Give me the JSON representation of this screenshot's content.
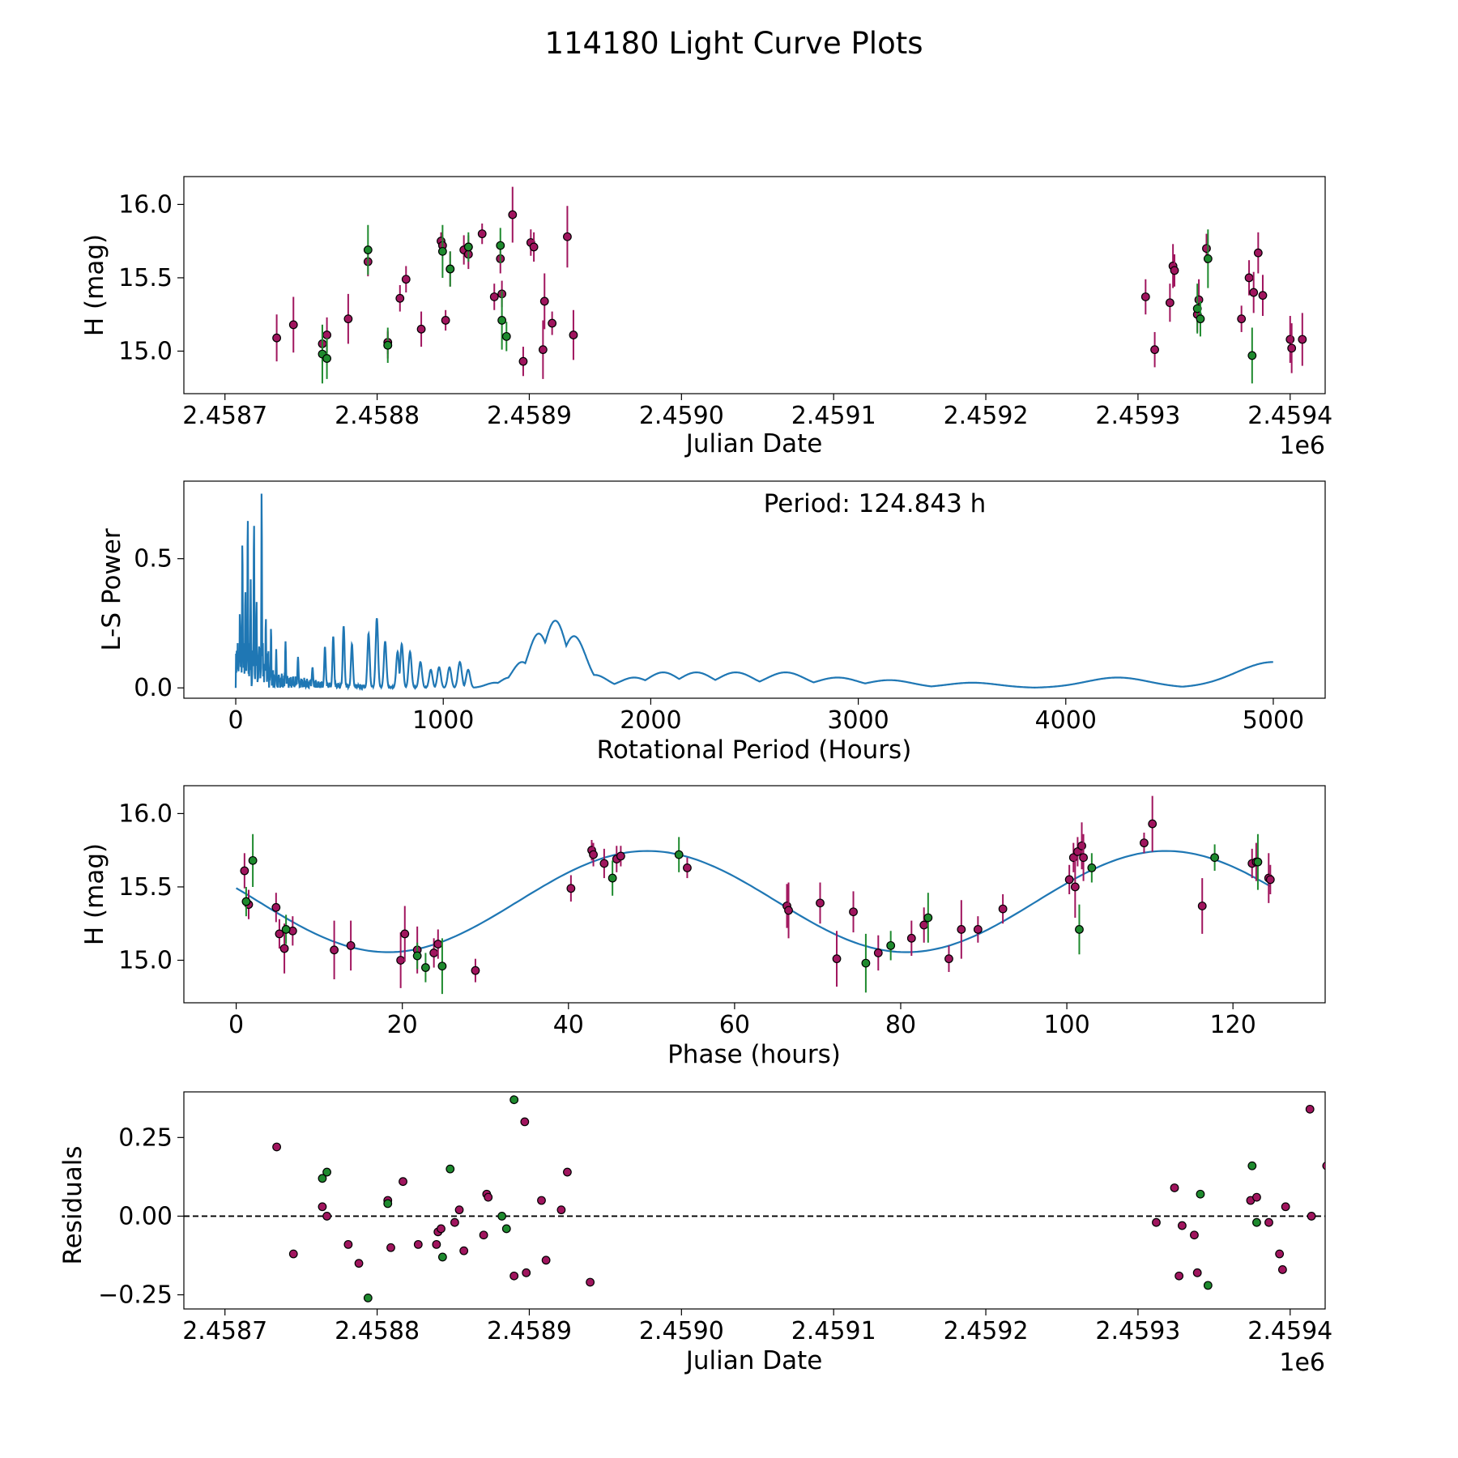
{
  "figure": {
    "title": "114180 Light Curve Plots"
  },
  "colors": {
    "magenta": "#A0155E",
    "green": "#1E8A2E",
    "line": "#1F77B4",
    "marker_edge": "#000000"
  },
  "chart_data": [
    {
      "type": "scatter",
      "name": "light-curve",
      "xlabel": "Julian Date",
      "ylabel": "H (mag)",
      "x_offset_label": "1e6",
      "xlim": [
        2.458673,
        2.459423
      ],
      "ylim": [
        14.71,
        16.19
      ],
      "xticks": [
        2.4587,
        2.4588,
        2.4589,
        2.459,
        2.4591,
        2.4592,
        2.4593,
        2.4594
      ],
      "xtick_labels": [
        "2.4587",
        "2.4588",
        "2.4589",
        "2.4590",
        "2.4591",
        "2.4592",
        "2.4593",
        "2.4594"
      ],
      "yticks": [
        15.0,
        15.5,
        16.0
      ],
      "ytick_labels": [
        "15.0",
        "15.5",
        "16.0"
      ],
      "series": [
        {
          "name": "magenta",
          "color": "#A0155E",
          "x": [
            2.458734,
            2.458745,
            2.458764,
            2.458767,
            2.458781,
            2.458794,
            2.458807,
            2.458807,
            2.458815,
            2.458819,
            2.458829,
            2.458842,
            2.458843,
            2.458845,
            2.458848,
            2.458857,
            2.45886,
            2.45886,
            2.458869,
            2.458877,
            2.458881,
            2.458882,
            2.458889,
            2.458896,
            2.458901,
            2.458903,
            2.458909,
            2.45891,
            2.458915,
            2.458925,
            2.458929,
            2.459305,
            2.459311,
            2.459321,
            2.459323,
            2.459324,
            2.459339,
            2.45934,
            2.459345,
            2.459368,
            2.459373,
            2.459376,
            2.459379,
            2.459382,
            2.4594,
            2.459401,
            2.459408
          ],
          "y": [
            15.09,
            15.18,
            15.05,
            15.11,
            15.22,
            15.61,
            15.06,
            15.04,
            15.36,
            15.49,
            15.15,
            15.75,
            15.72,
            15.21,
            15.56,
            15.69,
            15.71,
            15.66,
            15.8,
            15.37,
            15.63,
            15.39,
            15.93,
            14.93,
            15.74,
            15.71,
            15.01,
            15.34,
            15.19,
            15.78,
            15.11,
            15.37,
            15.01,
            15.33,
            15.58,
            15.55,
            15.25,
            15.35,
            15.7,
            15.22,
            15.5,
            15.4,
            15.67,
            15.38,
            15.08,
            15.02,
            15.08
          ],
          "err": [
            0.16,
            0.19,
            0.13,
            0.12,
            0.17,
            0.1,
            0.08,
            0.09,
            0.09,
            0.09,
            0.12,
            0.06,
            0.07,
            0.07,
            0.12,
            0.1,
            0.08,
            0.1,
            0.07,
            0.09,
            0.1,
            0.09,
            0.19,
            0.1,
            0.09,
            0.1,
            0.2,
            0.19,
            0.08,
            0.21,
            0.17,
            0.12,
            0.12,
            0.13,
            0.15,
            0.11,
            0.12,
            0.14,
            0.1,
            0.09,
            0.12,
            0.14,
            0.14,
            0.14,
            0.16,
            0.17,
            0.18
          ]
        },
        {
          "name": "green",
          "color": "#1E8A2E",
          "x": [
            2.458764,
            2.458767,
            2.458794,
            2.458807,
            2.458843,
            2.458848,
            2.45886,
            2.458881,
            2.458882,
            2.458885,
            2.459339,
            2.459341,
            2.459346,
            2.459375
          ],
          "y": [
            14.98,
            14.95,
            15.69,
            15.04,
            15.68,
            15.56,
            15.71,
            15.72,
            15.21,
            15.1,
            15.29,
            15.22,
            15.63,
            14.97
          ],
          "err": [
            0.2,
            0.14,
            0.17,
            0.12,
            0.18,
            0.12,
            0.1,
            0.12,
            0.2,
            0.1,
            0.17,
            0.12,
            0.2,
            0.19
          ]
        }
      ]
    },
    {
      "type": "line",
      "name": "periodogram",
      "xlabel": "Rotational Period (Hours)",
      "ylabel": "L-S Power",
      "annotation": "Period: 124.843 h",
      "xlim": [
        -250,
        5250
      ],
      "ylim": [
        -0.04,
        0.8
      ],
      "xticks": [
        0,
        1000,
        2000,
        3000,
        4000,
        5000
      ],
      "xtick_labels": [
        "0",
        "1000",
        "2000",
        "3000",
        "4000",
        "5000"
      ],
      "yticks": [
        0.0,
        0.5
      ],
      "ytick_labels": [
        "0.0",
        "0.5"
      ],
      "peaks": [
        {
          "period": 20,
          "power": 0.3
        },
        {
          "period": 32,
          "power": 0.58
        },
        {
          "period": 46,
          "power": 0.39
        },
        {
          "period": 58,
          "power": 0.68
        },
        {
          "period": 72,
          "power": 0.42
        },
        {
          "period": 88,
          "power": 0.66
        },
        {
          "period": 100,
          "power": 0.35
        },
        {
          "period": 124.843,
          "power": 0.77
        },
        {
          "period": 145,
          "power": 0.28
        },
        {
          "period": 170,
          "power": 0.24
        },
        {
          "period": 195,
          "power": 0.15
        },
        {
          "period": 240,
          "power": 0.18
        },
        {
          "period": 300,
          "power": 0.12
        },
        {
          "period": 370,
          "power": 0.08
        },
        {
          "period": 430,
          "power": 0.16
        },
        {
          "period": 470,
          "power": 0.2
        },
        {
          "period": 520,
          "power": 0.24
        },
        {
          "period": 560,
          "power": 0.17
        },
        {
          "period": 640,
          "power": 0.21
        },
        {
          "period": 680,
          "power": 0.27
        },
        {
          "period": 720,
          "power": 0.18
        },
        {
          "period": 780,
          "power": 0.14
        },
        {
          "period": 800,
          "power": 0.17
        },
        {
          "period": 840,
          "power": 0.14
        },
        {
          "period": 890,
          "power": 0.1
        },
        {
          "period": 940,
          "power": 0.07
        },
        {
          "period": 980,
          "power": 0.08
        },
        {
          "period": 1030,
          "power": 0.08
        },
        {
          "period": 1080,
          "power": 0.1
        },
        {
          "period": 1120,
          "power": 0.07
        },
        {
          "period": 1250,
          "power": 0.02
        },
        {
          "period": 1320,
          "power": 0.04
        },
        {
          "period": 1380,
          "power": 0.1
        },
        {
          "period": 1460,
          "power": 0.21
        },
        {
          "period": 1540,
          "power": 0.26
        },
        {
          "period": 1630,
          "power": 0.2
        },
        {
          "period": 1730,
          "power": 0.05
        },
        {
          "period": 1800,
          "power": 0.01
        },
        {
          "period": 1920,
          "power": 0.04
        },
        {
          "period": 2060,
          "power": 0.06
        },
        {
          "period": 2220,
          "power": 0.06
        },
        {
          "period": 2410,
          "power": 0.06
        },
        {
          "period": 2650,
          "power": 0.06
        },
        {
          "period": 2900,
          "power": 0.04
        },
        {
          "period": 3150,
          "power": 0.03
        },
        {
          "period": 3550,
          "power": 0.02
        },
        {
          "period": 4250,
          "power": 0.04
        },
        {
          "period": 5000,
          "power": 0.1
        }
      ]
    },
    {
      "type": "scatter",
      "name": "phase-folded",
      "xlabel": "Phase (hours)",
      "ylabel": "H (mag)",
      "period_hours": 124.843,
      "model": {
        "mean": 15.4,
        "amplitude": 0.345,
        "period": 62.42,
        "peak_phase": 49.5
      },
      "xlim": [
        -6.3,
        131.1
      ],
      "ylim": [
        14.71,
        16.19
      ],
      "xticks": [
        0,
        20,
        40,
        60,
        80,
        100,
        120
      ],
      "xtick_labels": [
        "0",
        "20",
        "40",
        "60",
        "80",
        "100",
        "120"
      ],
      "yticks": [
        15.0,
        15.5,
        16.0
      ],
      "ytick_labels": [
        "15.0",
        "15.5",
        "16.0"
      ],
      "series": [
        {
          "name": "magenta",
          "color": "#A0155E",
          "x": [
            1.0,
            1.5,
            4.8,
            5.2,
            5.8,
            6.8,
            11.8,
            13.8,
            19.8,
            20.3,
            21.8,
            23.8,
            24.3,
            28.8,
            40.3,
            42.8,
            43.0,
            44.3,
            45.8,
            46.3,
            54.3,
            66.3,
            66.5,
            70.3,
            72.3,
            74.3,
            77.3,
            81.3,
            82.8,
            85.8,
            87.3,
            89.3,
            92.3,
            100.3,
            100.8,
            101.0,
            101.3,
            101.8,
            102.0,
            109.3,
            110.3,
            116.3,
            122.3,
            122.8,
            124.3,
            124.5
          ],
          "y": [
            15.61,
            15.38,
            15.36,
            15.18,
            15.08,
            15.2,
            15.07,
            15.1,
            15.0,
            15.18,
            15.07,
            15.05,
            15.11,
            14.93,
            15.49,
            15.75,
            15.72,
            15.66,
            15.69,
            15.71,
            15.63,
            15.37,
            15.34,
            15.39,
            15.01,
            15.33,
            15.05,
            15.15,
            15.24,
            15.01,
            15.21,
            15.21,
            15.35,
            15.55,
            15.7,
            15.5,
            15.74,
            15.78,
            15.7,
            15.8,
            15.93,
            15.37,
            15.66,
            15.67,
            15.56,
            15.55
          ],
          "err": [
            0.12,
            0.1,
            0.1,
            0.1,
            0.17,
            0.1,
            0.2,
            0.17,
            0.19,
            0.19,
            0.16,
            0.1,
            0.1,
            0.08,
            0.09,
            0.07,
            0.08,
            0.1,
            0.09,
            0.07,
            0.07,
            0.15,
            0.19,
            0.14,
            0.19,
            0.14,
            0.12,
            0.12,
            0.12,
            0.09,
            0.2,
            0.09,
            0.1,
            0.1,
            0.1,
            0.21,
            0.1,
            0.16,
            0.16,
            0.07,
            0.19,
            0.19,
            0.1,
            0.13,
            0.17,
            0.1
          ]
        },
        {
          "name": "green",
          "color": "#1E8A2E",
          "x": [
            1.2,
            2.0,
            6.0,
            21.8,
            22.8,
            24.8,
            45.3,
            53.3,
            75.8,
            78.8,
            83.3,
            101.5,
            103.0,
            117.8,
            123.0
          ],
          "y": [
            15.4,
            15.68,
            15.21,
            15.03,
            14.95,
            14.96,
            15.56,
            15.72,
            14.98,
            15.1,
            15.29,
            15.21,
            15.63,
            15.7,
            15.67
          ],
          "err": [
            0.1,
            0.18,
            0.1,
            0.09,
            0.1,
            0.19,
            0.12,
            0.12,
            0.2,
            0.1,
            0.17,
            0.17,
            0.1,
            0.09,
            0.19
          ]
        }
      ]
    },
    {
      "type": "scatter",
      "name": "residuals",
      "xlabel": "Julian Date",
      "ylabel": "Residuals",
      "x_offset_label": "1e6",
      "reference_line": 0.0,
      "xlim": [
        2.458673,
        2.459423
      ],
      "ylim": [
        -0.295,
        0.395
      ],
      "xticks": [
        2.4587,
        2.4588,
        2.4589,
        2.459,
        2.4591,
        2.4592,
        2.4593,
        2.4594
      ],
      "xtick_labels": [
        "2.4587",
        "2.4588",
        "2.4589",
        "2.4590",
        "2.4591",
        "2.4592",
        "2.4593",
        "2.4594"
      ],
      "yticks": [
        -0.25,
        0.0,
        0.25
      ],
      "ytick_labels": [
        "−0.25",
        "0.00",
        "0.25"
      ],
      "series": [
        {
          "name": "magenta",
          "color": "#A0155E",
          "x": [
            2.458734,
            2.458745,
            2.458764,
            2.458767,
            2.458781,
            2.458788,
            2.458807,
            2.458809,
            2.458817,
            2.458827,
            2.458839,
            2.45884,
            2.458842,
            2.458851,
            2.458854,
            2.458857,
            2.45887,
            2.458872,
            2.458873,
            2.45889,
            2.458897,
            2.458898,
            2.458908,
            2.458911,
            2.458921,
            2.458925,
            2.45894,
            2.459312,
            2.459324,
            2.459327,
            2.459329,
            2.459337,
            2.459339,
            2.459374,
            2.459378,
            2.459386,
            2.459393,
            2.459395,
            2.459397,
            2.459413,
            2.459414,
            2.459424
          ],
          "y": [
            0.22,
            -0.12,
            0.03,
            0.0,
            -0.09,
            -0.15,
            0.05,
            -0.1,
            0.11,
            -0.09,
            -0.09,
            -0.05,
            -0.04,
            -0.02,
            0.02,
            -0.11,
            -0.06,
            0.07,
            0.06,
            -0.19,
            0.3,
            -0.18,
            0.05,
            -0.14,
            0.02,
            0.14,
            -0.21,
            -0.02,
            0.09,
            -0.19,
            -0.03,
            -0.06,
            -0.18,
            0.05,
            0.06,
            -0.02,
            -0.12,
            -0.17,
            0.03,
            0.34,
            0.0,
            0.16
          ],
          "note": "approximate"
        },
        {
          "name": "green",
          "color": "#1E8A2E",
          "x": [
            2.458764,
            2.458767,
            2.458794,
            2.458807,
            2.458843,
            2.458848,
            2.458882,
            2.458885,
            2.45889,
            2.459378,
            2.459341,
            2.459346,
            2.459375
          ],
          "y": [
            0.12,
            0.14,
            -0.26,
            0.04,
            -0.13,
            0.15,
            0.0,
            -0.04,
            0.37,
            -0.02,
            0.07,
            -0.22,
            0.16
          ]
        }
      ]
    }
  ]
}
